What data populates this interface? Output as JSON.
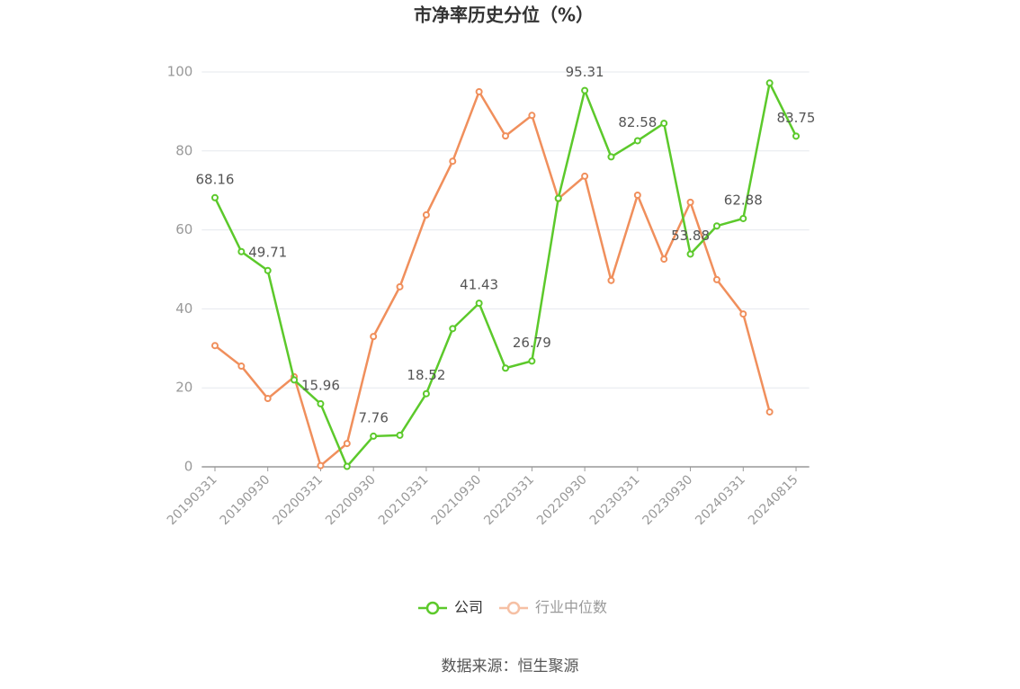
{
  "chart_data": {
    "type": "line",
    "title": "市净率历史分位（%）",
    "categories": [
      "20190331",
      null,
      "20190930",
      null,
      "20200331",
      null,
      "20200930",
      null,
      "20210331",
      null,
      "20210930",
      null,
      "20220331",
      null,
      "20220930",
      null,
      "20230331",
      null,
      "20230930",
      null,
      "20240331",
      null,
      "20240815"
    ],
    "series": [
      {
        "name": "公司",
        "color": "#5cc92b",
        "values": [
          68.16,
          54.5,
          49.71,
          22,
          15.96,
          0.1,
          7.76,
          8,
          18.52,
          35,
          41.43,
          25,
          26.79,
          68,
          95.31,
          78.5,
          82.58,
          87,
          53.88,
          61,
          62.88,
          97.2,
          83.75
        ]
      },
      {
        "name": "行业中位数",
        "color": "#f08f5c",
        "values": [
          30.7,
          25.5,
          17.3,
          22.8,
          0.3,
          5.9,
          33,
          45.6,
          63.8,
          77.4,
          95,
          83.8,
          89,
          67.9,
          73.6,
          47.2,
          68.8,
          52.6,
          67,
          47.4,
          38.7,
          13.9,
          null
        ]
      }
    ],
    "ylim": [
      0,
      100
    ],
    "yticks": [
      0,
      20,
      40,
      60,
      80,
      100
    ],
    "grid": true,
    "source": "数据来源：恒生聚源"
  }
}
